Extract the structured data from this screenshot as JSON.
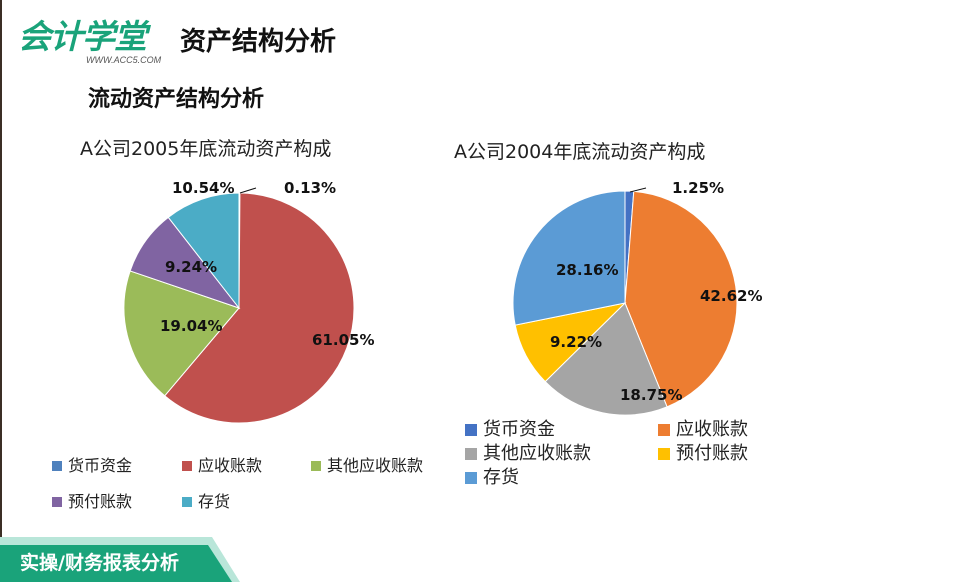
{
  "header": {
    "logo_text": "会计学堂",
    "logo_url": "WWW.ACC5.COM",
    "page_title": "资产结构分析",
    "brand_color": "#1aa37a"
  },
  "section": {
    "title": "流动资产结构分析"
  },
  "footer": {
    "label": "实操/财务报表分析",
    "band_color": "#1aa37a",
    "band_light_color": "#b9e6d9"
  },
  "chart_data": [
    {
      "type": "pie",
      "title": "A公司2005年底流动资产构成",
      "categories": [
        "货币资金",
        "应收账款",
        "其他应收账款",
        "预付账款",
        "存货"
      ],
      "values": [
        0.13,
        61.05,
        19.04,
        9.24,
        10.54
      ],
      "labels": [
        "0.13%",
        "61.05%",
        "19.04%",
        "9.24%",
        "10.54%"
      ],
      "colors": [
        "#4f81bd",
        "#c0504d",
        "#9bbb59",
        "#8064a2",
        "#4bacc6"
      ],
      "legend_position": "bottom",
      "start_angle": "12 o'clock, clockwise"
    },
    {
      "type": "pie",
      "title": "A公司2004年底流动资产构成",
      "categories": [
        "货币资金",
        "应收账款",
        "其他应收账款",
        "预付账款",
        "存货"
      ],
      "values": [
        1.25,
        42.62,
        18.75,
        9.22,
        28.16
      ],
      "labels": [
        "1.25%",
        "42.62%",
        "18.75%",
        "9.22%",
        "28.16%"
      ],
      "colors": [
        "#4472c4",
        "#ed7d31",
        "#a5a5a5",
        "#ffc000",
        "#5b9bd5"
      ],
      "legend_position": "bottom",
      "start_angle": "12 o'clock, clockwise"
    }
  ]
}
